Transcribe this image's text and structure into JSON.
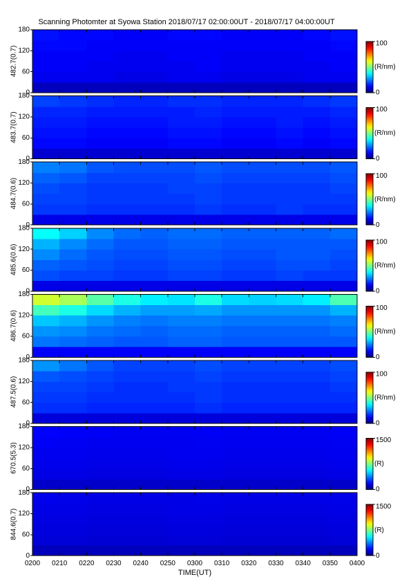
{
  "chart_data": {
    "type": "heatmap",
    "title": "Scanning Photomter at Syowa Station 2018/07/17 02:00:00UT - 2018/07/17 04:00:00UT",
    "xlabel": "TIME(UT)",
    "xlim": [
      0,
      120
    ],
    "xticks": [
      {
        "value": 0,
        "label": "0200"
      },
      {
        "value": 10,
        "label": "0210"
      },
      {
        "value": 20,
        "label": "0220"
      },
      {
        "value": 30,
        "label": "0230"
      },
      {
        "value": 40,
        "label": "0240"
      },
      {
        "value": 50,
        "label": "0250"
      },
      {
        "value": 60,
        "label": "0300"
      },
      {
        "value": 70,
        "label": "0310"
      },
      {
        "value": 80,
        "label": "0320"
      },
      {
        "value": 90,
        "label": "0330"
      },
      {
        "value": 100,
        "label": "0340"
      },
      {
        "value": 110,
        "label": "0350"
      },
      {
        "value": 120,
        "label": "0400"
      }
    ],
    "ylim": [
      0,
      180
    ],
    "yticks": [
      0,
      60,
      120,
      180
    ],
    "colormap": "jet",
    "panels": [
      {
        "ylabel": "482.7(0.7)",
        "clim": [
          0,
          100
        ],
        "cticks": [
          0,
          100
        ],
        "clabel": "(R/nm)",
        "values": [
          [
            6,
            6,
            6,
            6,
            6,
            6,
            6,
            6,
            6,
            6,
            6,
            6
          ],
          [
            11,
            11,
            11,
            10,
            10,
            11,
            11,
            10,
            10,
            10,
            11,
            11
          ],
          [
            12,
            12,
            11,
            11,
            11,
            11,
            12,
            11,
            11,
            11,
            11,
            12
          ],
          [
            12,
            12,
            12,
            11,
            11,
            12,
            12,
            11,
            11,
            11,
            12,
            12
          ],
          [
            13,
            13,
            12,
            12,
            12,
            12,
            12,
            12,
            12,
            12,
            12,
            13
          ],
          [
            14,
            13,
            13,
            12,
            12,
            13,
            13,
            12,
            12,
            12,
            13,
            14
          ]
        ]
      },
      {
        "ylabel": "483.7(0.7)",
        "clim": [
          0,
          100
        ],
        "cticks": [
          0,
          100
        ],
        "clabel": "(R/nm)",
        "values": [
          [
            8,
            8,
            8,
            8,
            8,
            8,
            8,
            8,
            8,
            8,
            8,
            8
          ],
          [
            13,
            13,
            12,
            12,
            12,
            13,
            13,
            12,
            12,
            13,
            12,
            13
          ],
          [
            14,
            14,
            13,
            13,
            13,
            14,
            14,
            13,
            13,
            14,
            13,
            14
          ],
          [
            15,
            15,
            14,
            14,
            14,
            15,
            15,
            14,
            14,
            15,
            14,
            15
          ],
          [
            16,
            16,
            15,
            15,
            15,
            15,
            16,
            15,
            15,
            15,
            15,
            16
          ],
          [
            19,
            18,
            17,
            16,
            16,
            17,
            17,
            16,
            16,
            16,
            17,
            18
          ]
        ]
      },
      {
        "ylabel": "484.7(0.6)",
        "clim": [
          0,
          100
        ],
        "cticks": [
          0,
          100
        ],
        "clabel": "(R/nm)",
        "values": [
          [
            10,
            10,
            10,
            10,
            10,
            10,
            10,
            10,
            10,
            10,
            10,
            10
          ],
          [
            18,
            18,
            17,
            17,
            17,
            17,
            18,
            17,
            17,
            18,
            17,
            17
          ],
          [
            19,
            19,
            18,
            18,
            18,
            18,
            19,
            18,
            18,
            18,
            18,
            18
          ],
          [
            20,
            19,
            18,
            18,
            18,
            19,
            19,
            18,
            18,
            18,
            18,
            19
          ],
          [
            22,
            21,
            19,
            19,
            19,
            19,
            20,
            19,
            19,
            19,
            19,
            20
          ],
          [
            25,
            24,
            21,
            20,
            20,
            20,
            21,
            20,
            20,
            20,
            20,
            21
          ]
        ]
      },
      {
        "ylabel": "485.6(0.6)",
        "clim": [
          0,
          100
        ],
        "cticks": [
          0,
          100
        ],
        "clabel": "(R/nm)",
        "values": [
          [
            10,
            10,
            10,
            10,
            10,
            10,
            10,
            10,
            10,
            10,
            10,
            10
          ],
          [
            20,
            19,
            19,
            18,
            18,
            19,
            19,
            18,
            18,
            19,
            18,
            18
          ],
          [
            22,
            21,
            20,
            19,
            19,
            20,
            20,
            19,
            19,
            20,
            20,
            19
          ],
          [
            26,
            23,
            21,
            20,
            20,
            21,
            21,
            20,
            20,
            21,
            21,
            20
          ],
          [
            30,
            26,
            23,
            21,
            21,
            22,
            22,
            21,
            21,
            21,
            21,
            21
          ],
          [
            38,
            33,
            26,
            23,
            22,
            23,
            23,
            22,
            22,
            22,
            22,
            23
          ]
        ]
      },
      {
        "ylabel": "486.7(0.6)",
        "clim": [
          0,
          100
        ],
        "cticks": [
          0,
          100
        ],
        "clabel": "(R/nm)",
        "values": [
          [
            12,
            12,
            12,
            12,
            12,
            12,
            12,
            12,
            12,
            12,
            12,
            12
          ],
          [
            24,
            23,
            22,
            21,
            21,
            22,
            22,
            21,
            21,
            21,
            21,
            21
          ],
          [
            27,
            26,
            24,
            23,
            22,
            23,
            23,
            22,
            22,
            22,
            22,
            23
          ],
          [
            32,
            30,
            27,
            25,
            24,
            25,
            25,
            24,
            24,
            24,
            24,
            25
          ],
          [
            44,
            40,
            34,
            30,
            28,
            28,
            29,
            27,
            27,
            27,
            27,
            30
          ],
          [
            58,
            54,
            46,
            40,
            36,
            35,
            40,
            34,
            33,
            34,
            36,
            45
          ]
        ]
      },
      {
        "ylabel": "487.5(0.6)",
        "clim": [
          0,
          100
        ],
        "cticks": [
          0,
          100
        ],
        "clabel": "(R/nm)",
        "values": [
          [
            9,
            9,
            9,
            9,
            9,
            9,
            9,
            9,
            9,
            9,
            9,
            9
          ],
          [
            17,
            17,
            16,
            16,
            16,
            16,
            17,
            16,
            16,
            16,
            16,
            16
          ],
          [
            18,
            18,
            17,
            17,
            17,
            17,
            18,
            17,
            17,
            17,
            17,
            17
          ],
          [
            19,
            19,
            18,
            17,
            17,
            18,
            18,
            17,
            17,
            17,
            17,
            18
          ],
          [
            21,
            20,
            19,
            18,
            18,
            18,
            19,
            18,
            18,
            18,
            18,
            19
          ],
          [
            27,
            24,
            21,
            19,
            19,
            19,
            20,
            19,
            19,
            19,
            19,
            20
          ]
        ]
      },
      {
        "ylabel": "670.5(5.3)",
        "clim": [
          0,
          1500
        ],
        "cticks": [
          0,
          1500
        ],
        "clabel": "(R)",
        "values": [
          [
            110,
            110,
            110,
            110,
            110,
            110,
            110,
            110,
            110,
            110,
            110,
            110
          ],
          [
            150,
            150,
            145,
            145,
            145,
            150,
            150,
            145,
            145,
            145,
            145,
            150
          ],
          [
            160,
            160,
            155,
            155,
            155,
            160,
            160,
            155,
            155,
            155,
            155,
            160
          ],
          [
            165,
            165,
            160,
            160,
            160,
            165,
            165,
            160,
            160,
            160,
            160,
            165
          ],
          [
            175,
            170,
            165,
            165,
            165,
            165,
            170,
            165,
            165,
            165,
            165,
            170
          ],
          [
            185,
            180,
            175,
            170,
            170,
            170,
            175,
            170,
            170,
            170,
            170,
            175
          ]
        ]
      },
      {
        "ylabel": "844.6(0.7)",
        "clim": [
          0,
          1500
        ],
        "cticks": [
          0,
          1500
        ],
        "clabel": "(R)",
        "values": [
          [
            90,
            90,
            90,
            90,
            90,
            90,
            90,
            90,
            90,
            90,
            90,
            90
          ],
          [
            130,
            130,
            125,
            125,
            125,
            130,
            130,
            125,
            125,
            125,
            125,
            130
          ],
          [
            140,
            140,
            135,
            135,
            135,
            140,
            140,
            135,
            135,
            135,
            135,
            140
          ],
          [
            145,
            145,
            140,
            140,
            140,
            145,
            145,
            140,
            140,
            140,
            140,
            145
          ],
          [
            150,
            150,
            145,
            145,
            145,
            150,
            150,
            145,
            145,
            145,
            145,
            150
          ],
          [
            160,
            155,
            150,
            150,
            150,
            150,
            155,
            150,
            150,
            150,
            150,
            155
          ]
        ]
      }
    ]
  }
}
